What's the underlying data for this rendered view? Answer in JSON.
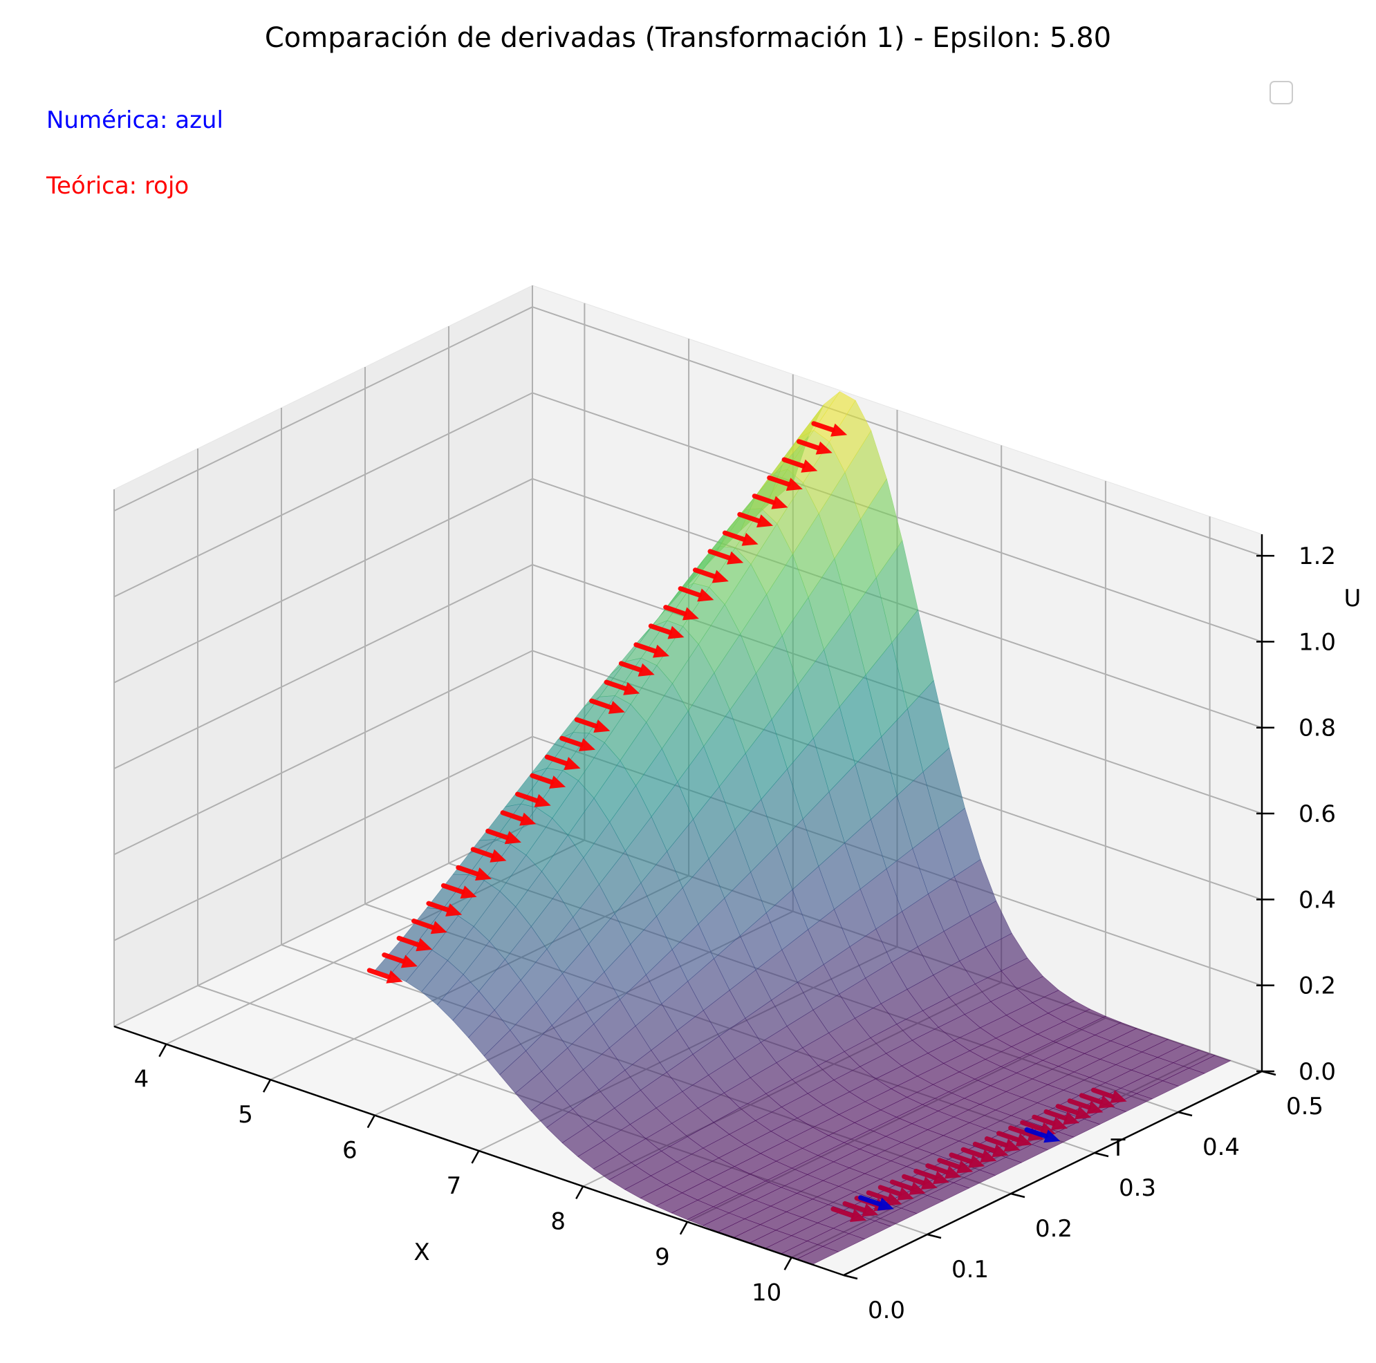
{
  "chart_data": {
    "type": "surface3d",
    "title": "Comparación de derivadas (Transformación 1) - Epsilon: 5.80",
    "xlabel": "X",
    "ylabel": "T",
    "zlabel": "U",
    "xlim": [
      3.5,
      10.5
    ],
    "ylim": [
      0.0,
      0.5
    ],
    "zlim": [
      0.0,
      1.25
    ],
    "x_ticks": [
      "4",
      "5",
      "6",
      "7",
      "8",
      "9",
      "10"
    ],
    "y_ticks": [
      "0.0",
      "0.1",
      "0.2",
      "0.3",
      "0.4",
      "0.5"
    ],
    "z_ticks": [
      "0.0",
      "0.2",
      "0.4",
      "0.6",
      "0.8",
      "1.0",
      "1.2"
    ],
    "x_tick_values": [
      4,
      5,
      6,
      7,
      8,
      9,
      10
    ],
    "y_tick_values": [
      0.0,
      0.1,
      0.2,
      0.3,
      0.4,
      0.5
    ],
    "z_tick_values": [
      0.0,
      0.2,
      0.4,
      0.6,
      0.8,
      1.0,
      1.2
    ],
    "surface": {
      "description": "U(X,T) bump surface",
      "x_range": [
        6.0,
        10.2
      ],
      "t_range": [
        0.0,
        0.5
      ],
      "peak": {
        "x": 6.5,
        "t": 0.5,
        "u": 1.25
      },
      "colormap": "viridis",
      "alpha": 0.6
    },
    "legend": {
      "position": "top-right",
      "entries": []
    },
    "annotations": [
      {
        "text": "Numérica: azul",
        "color": "#0000ff"
      },
      {
        "text": "Teórica: rojo",
        "color": "#ff0000"
      }
    ],
    "series": [
      {
        "name": "Teórica",
        "color": "#ff0000",
        "kind": "quiver"
      },
      {
        "name": "Numérica",
        "color": "#0000cc",
        "kind": "quiver"
      }
    ]
  },
  "colors": {
    "pane": "#f2f2f2",
    "grid": "#b0b0b0",
    "theoretical": "#ff0000",
    "numerical": "#0000cc"
  }
}
